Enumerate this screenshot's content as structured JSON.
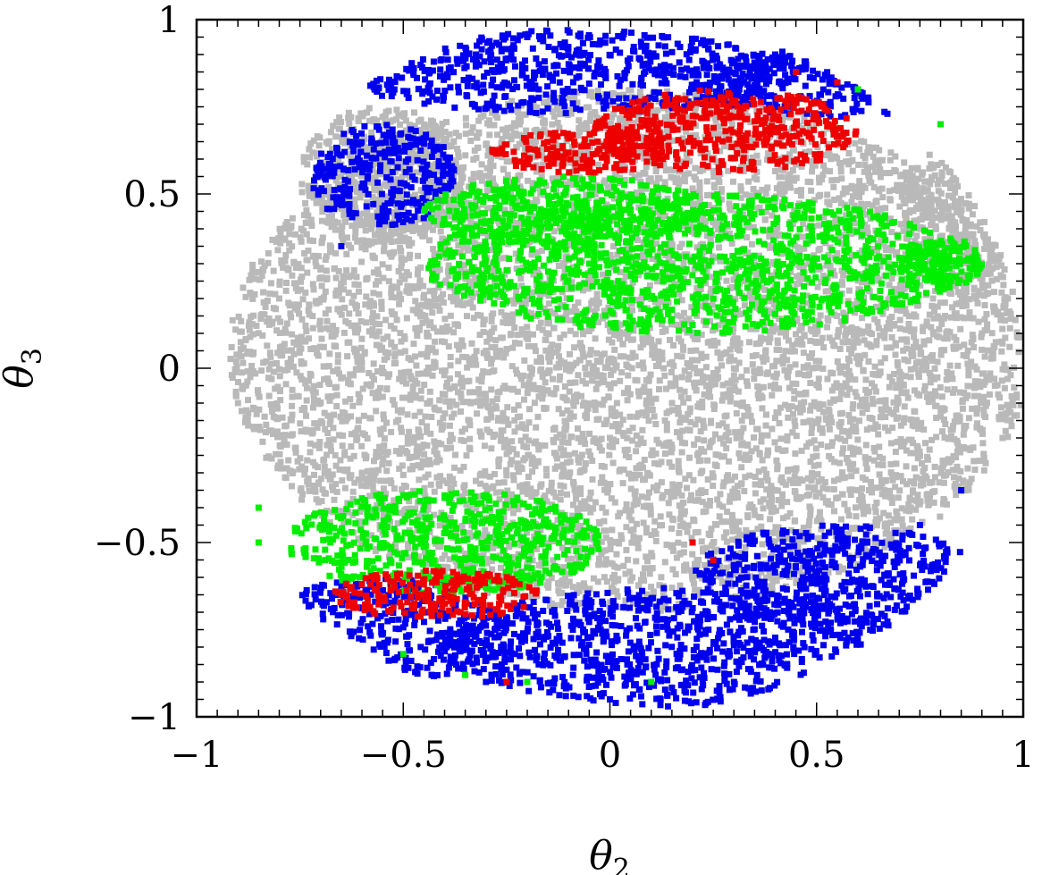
{
  "chart_data": {
    "type": "scatter",
    "title": "",
    "xlabel": "θ",
    "xlabel_sub": "2",
    "ylabel": "θ",
    "ylabel_sub": "3",
    "xlim": [
      -1,
      1
    ],
    "ylim": [
      -1,
      1
    ],
    "xticks": [
      -1,
      -0.5,
      0,
      0.5,
      1
    ],
    "yticks": [
      -1,
      -0.5,
      0,
      0.5,
      1
    ],
    "xtick_labels": [
      "−1",
      "−0.5",
      "0",
      "0.5",
      "1"
    ],
    "ytick_labels": [
      "−1",
      "−0.5",
      "0",
      "0.5",
      "1"
    ],
    "grid": false,
    "legend": "none",
    "series": [
      {
        "color": "#b9b9b9",
        "regions": [
          {
            "cx": 0.05,
            "cy": 0.05,
            "rx": 0.97,
            "ry": 0.75
          },
          {
            "cx": -0.55,
            "cy": 0.55,
            "rx": 0.2,
            "ry": 0.2
          },
          {
            "cx": 0.85,
            "cy": 0.45,
            "rx": 0.15,
            "ry": 0.2
          }
        ],
        "points": [
          [
            -0.9,
            -0.1
          ],
          [
            -0.8,
            0.2
          ],
          [
            0.9,
            0.1
          ],
          [
            0.95,
            -0.2
          ],
          [
            -0.6,
            -0.3
          ],
          [
            0.6,
            -0.35
          ],
          [
            0.3,
            0.0
          ],
          [
            -0.3,
            0.05
          ],
          [
            0.0,
            -0.2
          ],
          [
            0.85,
            0.35
          ]
        ]
      },
      {
        "color": "#0000ee",
        "regions": [
          {
            "cx": 0.15,
            "cy": -0.8,
            "rx": 0.55,
            "ry": 0.17
          },
          {
            "cx": 0.55,
            "cy": -0.6,
            "rx": 0.35,
            "ry": 0.15
          },
          {
            "cx": -0.55,
            "cy": -0.75,
            "rx": 0.3,
            "ry": 0.15
          },
          {
            "cx": -0.1,
            "cy": 0.85,
            "rx": 0.55,
            "ry": 0.12
          },
          {
            "cx": -0.55,
            "cy": 0.55,
            "rx": 0.18,
            "ry": 0.15
          },
          {
            "cx": 0.55,
            "cy": 0.82,
            "rx": 0.35,
            "ry": 0.1
          }
        ],
        "points": [
          [
            0.0,
            -0.95
          ],
          [
            0.3,
            -0.9
          ],
          [
            -0.3,
            -0.9
          ],
          [
            0.75,
            -0.45
          ],
          [
            0.85,
            -0.35
          ],
          [
            -0.65,
            0.35
          ],
          [
            -0.2,
            0.95
          ],
          [
            0.4,
            0.9
          ]
        ]
      },
      {
        "color": "#00ee00",
        "regions": [
          {
            "cx": 0.2,
            "cy": 0.3,
            "rx": 0.65,
            "ry": 0.2
          },
          {
            "cx": -0.4,
            "cy": -0.5,
            "rx": 0.38,
            "ry": 0.15
          },
          {
            "cx": -0.1,
            "cy": 0.45,
            "rx": 0.35,
            "ry": 0.1
          },
          {
            "cx": 0.8,
            "cy": 0.3,
            "rx": 0.1,
            "ry": 0.08
          }
        ],
        "points": [
          [
            -0.35,
            -0.88
          ],
          [
            -0.2,
            -0.9
          ],
          [
            -0.5,
            -0.82
          ],
          [
            0.6,
            0.8
          ],
          [
            0.8,
            0.7
          ],
          [
            -0.85,
            -0.4
          ],
          [
            0.1,
            -0.9
          ],
          [
            -0.85,
            -0.5
          ]
        ]
      },
      {
        "color": "#ee0000",
        "regions": [
          {
            "cx": 0.28,
            "cy": 0.68,
            "rx": 0.32,
            "ry": 0.12
          },
          {
            "cx": -0.07,
            "cy": 0.62,
            "rx": 0.22,
            "ry": 0.06
          },
          {
            "cx": -0.42,
            "cy": -0.65,
            "rx": 0.25,
            "ry": 0.07
          }
        ],
        "points": [
          [
            -0.25,
            -0.9
          ],
          [
            0.25,
            -0.55
          ],
          [
            -0.65,
            -0.65
          ],
          [
            0.55,
            0.82
          ],
          [
            0.45,
            0.85
          ],
          [
            0.2,
            -0.5
          ]
        ]
      }
    ]
  }
}
